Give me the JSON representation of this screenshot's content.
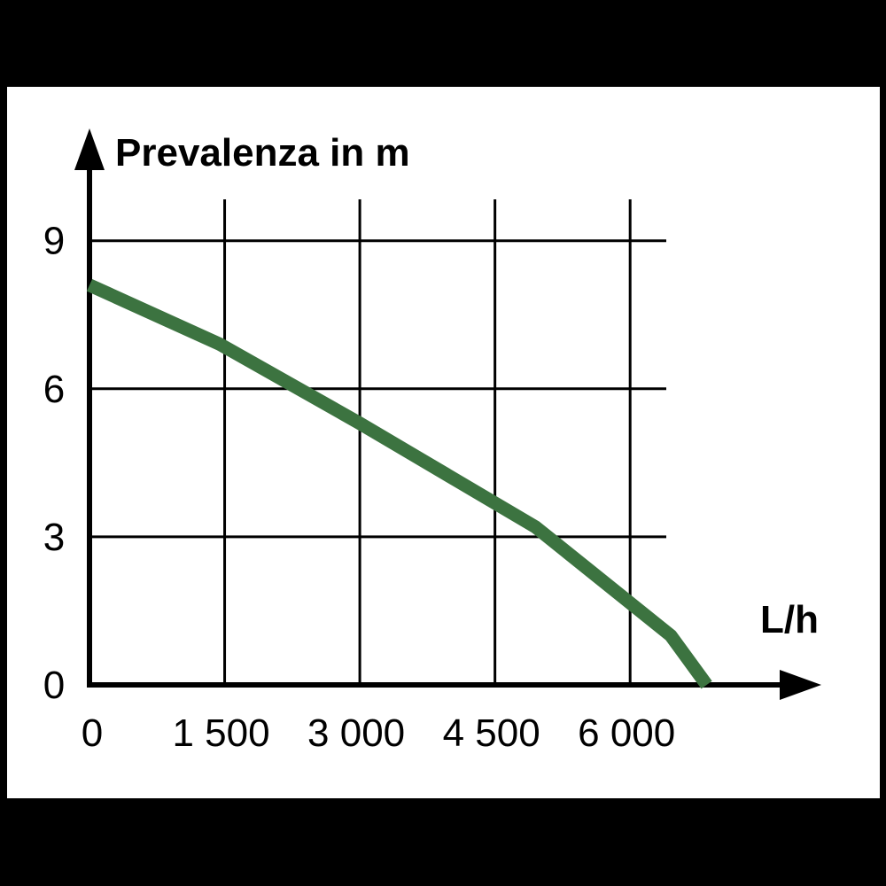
{
  "colors": {
    "frame": "#000000",
    "background": "#ffffff",
    "curve": "#3c7340",
    "grid": "#000000"
  },
  "chart_data": {
    "type": "line",
    "ylabel": "Prevalenza in m",
    "xlabel": "L/h",
    "xlim": [
      0,
      7800
    ],
    "ylim": [
      0,
      10.5
    ],
    "x_ticks": [
      {
        "value": 0,
        "label": "0"
      },
      {
        "value": 1500,
        "label": "1 500"
      },
      {
        "value": 3000,
        "label": "3 000"
      },
      {
        "value": 4500,
        "label": "4 500"
      },
      {
        "value": 6000,
        "label": "6 000"
      }
    ],
    "y_ticks": [
      {
        "value": 0,
        "label": "0"
      },
      {
        "value": 3,
        "label": "3"
      },
      {
        "value": 6,
        "label": "6"
      },
      {
        "value": 9,
        "label": "9"
      }
    ],
    "grid": true,
    "series": [
      {
        "x": [
          0,
          1450,
          3000,
          4950,
          6450,
          6850
        ],
        "y": [
          8.1,
          6.9,
          5.3,
          3.2,
          1.0,
          0
        ]
      }
    ]
  }
}
